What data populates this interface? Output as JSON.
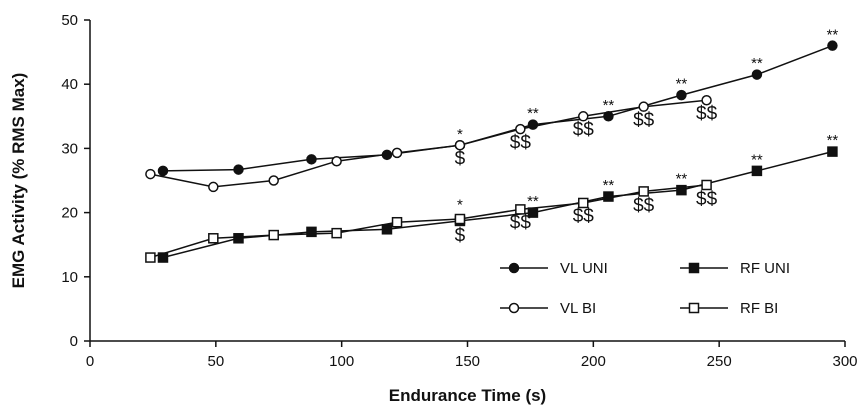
{
  "chart_data": {
    "type": "line",
    "title": "",
    "xlabel": "Endurance Time (s)",
    "ylabel": "EMG Activity (% RMS Max)",
    "xlim": [
      0,
      300
    ],
    "ylim": [
      0,
      50
    ],
    "xticks": [
      0,
      50,
      100,
      150,
      200,
      250,
      300
    ],
    "yticks": [
      0,
      10,
      20,
      30,
      40,
      50
    ],
    "grid": false,
    "legend_position": "lower-right",
    "series": [
      {
        "name": "VL UNI",
        "marker": "filled-circle",
        "x": [
          29,
          59,
          88,
          118,
          147,
          176,
          206,
          235,
          265,
          295
        ],
        "y": [
          26.5,
          26.7,
          28.3,
          29.0,
          30.5,
          33.7,
          35.0,
          38.3,
          41.5,
          46.0
        ]
      },
      {
        "name": "VL BI",
        "marker": "open-circle",
        "x": [
          24,
          49,
          73,
          98,
          122,
          147,
          171,
          196,
          220,
          245
        ],
        "y": [
          26.0,
          24.0,
          25.0,
          28.0,
          29.3,
          30.5,
          33.0,
          35.0,
          36.5,
          37.5
        ]
      },
      {
        "name": "RF UNI",
        "marker": "filled-square",
        "x": [
          29,
          59,
          88,
          118,
          147,
          176,
          206,
          235,
          265,
          295
        ],
        "y": [
          13.0,
          16.0,
          17.0,
          17.4,
          18.7,
          20.0,
          22.5,
          23.5,
          26.5,
          29.5
        ]
      },
      {
        "name": "RF BI",
        "marker": "open-square",
        "x": [
          24,
          49,
          73,
          98,
          122,
          147,
          171,
          196,
          220,
          245
        ],
        "y": [
          13.0,
          16.0,
          16.5,
          16.8,
          18.5,
          19.0,
          20.5,
          21.5,
          23.3,
          24.3
        ]
      }
    ],
    "annotations": [
      {
        "text": "*",
        "x": 147,
        "y": 31.5,
        "style": "star"
      },
      {
        "text": "**",
        "x": 176,
        "y": 34.7,
        "style": "star"
      },
      {
        "text": "**",
        "x": 206,
        "y": 36.0,
        "style": "star"
      },
      {
        "text": "**",
        "x": 235,
        "y": 39.3,
        "style": "star"
      },
      {
        "text": "**",
        "x": 265,
        "y": 42.5,
        "style": "star"
      },
      {
        "text": "**",
        "x": 295,
        "y": 47.0,
        "style": "star"
      },
      {
        "text": "$",
        "x": 147,
        "y": 27.5,
        "style": "dollar"
      },
      {
        "text": "$$",
        "x": 171,
        "y": 30.0,
        "style": "dollar"
      },
      {
        "text": "$$",
        "x": 196,
        "y": 32.0,
        "style": "dollar"
      },
      {
        "text": "$$",
        "x": 220,
        "y": 33.5,
        "style": "dollar"
      },
      {
        "text": "$$",
        "x": 245,
        "y": 34.5,
        "style": "dollar"
      },
      {
        "text": "*",
        "x": 147,
        "y": 20.5,
        "style": "star"
      },
      {
        "text": "**",
        "x": 176,
        "y": 21.0,
        "style": "star"
      },
      {
        "text": "**",
        "x": 206,
        "y": 23.5,
        "style": "star"
      },
      {
        "text": "**",
        "x": 235,
        "y": 24.5,
        "style": "star"
      },
      {
        "text": "**",
        "x": 265,
        "y": 27.5,
        "style": "star"
      },
      {
        "text": "**",
        "x": 295,
        "y": 30.5,
        "style": "star"
      },
      {
        "text": "$",
        "x": 147,
        "y": 15.5,
        "style": "dollar"
      },
      {
        "text": "$$",
        "x": 171,
        "y": 17.5,
        "style": "dollar"
      },
      {
        "text": "$$",
        "x": 196,
        "y": 18.5,
        "style": "dollar"
      },
      {
        "text": "$$",
        "x": 220,
        "y": 20.2,
        "style": "dollar"
      },
      {
        "text": "$$",
        "x": 245,
        "y": 21.2,
        "style": "dollar"
      }
    ]
  }
}
